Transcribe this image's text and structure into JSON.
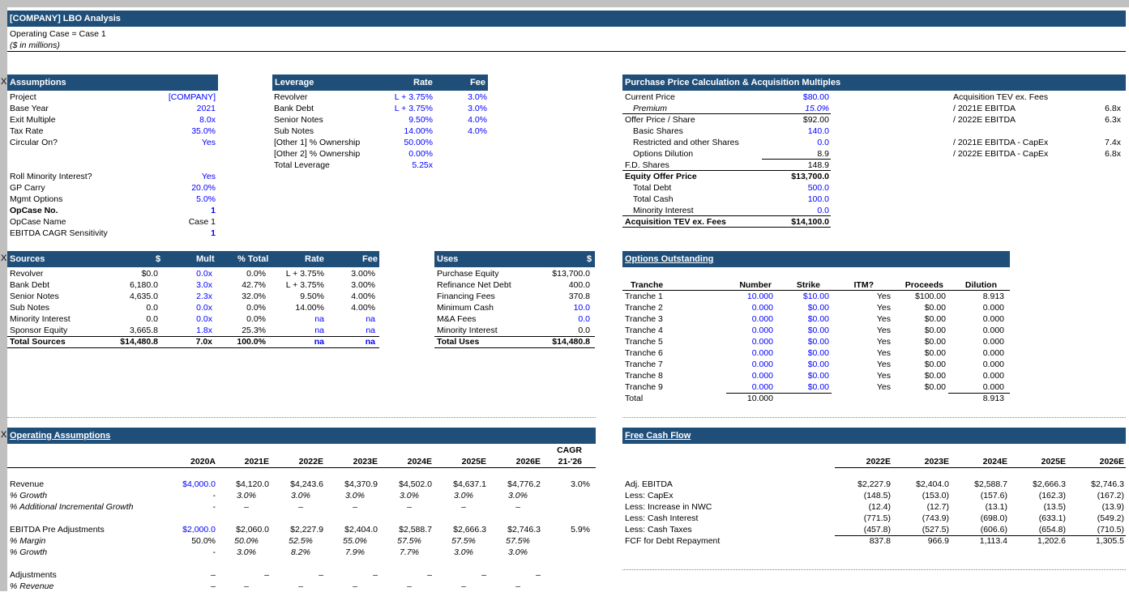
{
  "title": "[COMPANY] LBO Analysis",
  "subtitle1": "Operating Case = Case 1",
  "subtitle2": "($ in millions)",
  "x_mark": "X",
  "assumptions": {
    "header": "Assumptions",
    "rows": [
      {
        "label": "Project",
        "value": "[COMPANY]"
      },
      {
        "label": "Base Year",
        "value": "2021"
      },
      {
        "label": "Exit Multiple",
        "value": "8.0x"
      },
      {
        "label": "Tax Rate",
        "value": "35.0%"
      },
      {
        "label": "Circular On?",
        "value": "Yes"
      }
    ],
    "rows2": [
      {
        "label": "Roll Minority Interest?",
        "value": "Yes"
      },
      {
        "label": "GP Carry",
        "value": "20.0%"
      },
      {
        "label": "Mgmt Options",
        "value": "5.0%"
      },
      {
        "label": "OpCase No.",
        "value": "1"
      },
      {
        "label": "OpCase Name",
        "value": "Case 1"
      },
      {
        "label": "EBITDA CAGR Sensitivity",
        "value": "1"
      }
    ]
  },
  "leverage": {
    "header": "Leverage",
    "col_rate": "Rate",
    "col_fee": "Fee",
    "rows": [
      {
        "label": "Revolver",
        "rate": "L + 3.75%",
        "fee": "3.0%"
      },
      {
        "label": "Bank Debt",
        "rate": "L + 3.75%",
        "fee": "3.0%"
      },
      {
        "label": "Senior Notes",
        "rate": "9.50%",
        "fee": "4.0%"
      },
      {
        "label": "Sub Notes",
        "rate": "14.00%",
        "fee": "4.0%"
      },
      {
        "label": "[Other 1] % Ownership",
        "rate": "50.00%",
        "fee": ""
      },
      {
        "label": "[Other 2] % Ownership",
        "rate": "0.00%",
        "fee": ""
      },
      {
        "label": "Total Leverage",
        "rate": "5.25x",
        "fee": ""
      }
    ]
  },
  "purchase": {
    "header": "Purchase Price Calculation & Acquisition Multiples",
    "rows": [
      {
        "label": "Current Price",
        "value": "$80.00"
      },
      {
        "label": "Premium",
        "value": "15.0%"
      },
      {
        "label": "Offer Price / Share",
        "value": "$92.00"
      },
      {
        "label": "Basic Shares",
        "value": "140.0"
      },
      {
        "label": "Restricted and other Shares",
        "value": "0.0"
      },
      {
        "label": "Options Dilution",
        "value": "8.9"
      },
      {
        "label": "F.D. Shares",
        "value": "148.9"
      },
      {
        "label": "Equity Offer Price",
        "value": "$13,700.0"
      },
      {
        "label": "Total Debt",
        "value": "500.0"
      },
      {
        "label": "Total Cash",
        "value": "100.0"
      },
      {
        "label": "Minority Interest",
        "value": "0.0"
      },
      {
        "label": "Acquisition TEV ex. Fees",
        "value": "$14,100.0"
      }
    ],
    "multiples_title": "Acquisition TEV ex. Fees",
    "multiples": [
      {
        "label": "/ 2021E EBITDA",
        "value": "6.8x"
      },
      {
        "label": "/ 2022E EBITDA",
        "value": "6.3x"
      },
      {
        "label": "/ 2021E EBITDA - CapEx",
        "value": "7.4x"
      },
      {
        "label": "/ 2022E EBITDA - CapEx",
        "value": "6.8x"
      }
    ]
  },
  "sources": {
    "header": "Sources",
    "cols": [
      "$",
      "Mult",
      "% Total",
      "Rate",
      "Fee"
    ],
    "rows": [
      {
        "label": "Revolver",
        "d": "$0.0",
        "mult": "0.0x",
        "pct": "0.0%",
        "rate": "L + 3.75%",
        "fee": "3.00%"
      },
      {
        "label": "Bank Debt",
        "d": "6,180.0",
        "mult": "3.0x",
        "pct": "42.7%",
        "rate": "L + 3.75%",
        "fee": "3.00%"
      },
      {
        "label": "Senior Notes",
        "d": "4,635.0",
        "mult": "2.3x",
        "pct": "32.0%",
        "rate": "9.50%",
        "fee": "4.00%"
      },
      {
        "label": "Sub Notes",
        "d": "0.0",
        "mult": "0.0x",
        "pct": "0.0%",
        "rate": "14.00%",
        "fee": "4.00%"
      },
      {
        "label": "Minority Interest",
        "d": "0.0",
        "mult": "0.0x",
        "pct": "0.0%",
        "rate": "na",
        "fee": "na"
      },
      {
        "label": "Sponsor Equity",
        "d": "3,665.8",
        "mult": "1.8x",
        "pct": "25.3%",
        "rate": "na",
        "fee": "na"
      },
      {
        "label": "Total Sources",
        "d": "$14,480.8",
        "mult": "7.0x",
        "pct": "100.0%",
        "rate": "na",
        "fee": "na"
      }
    ]
  },
  "uses": {
    "header": "Uses",
    "col": "$",
    "rows": [
      {
        "label": "Purchase Equity",
        "value": "$13,700.0"
      },
      {
        "label": "Refinance Net Debt",
        "value": "400.0"
      },
      {
        "label": "Financing Fees",
        "value": "370.8"
      },
      {
        "label": "Minimum Cash",
        "value": "10.0"
      },
      {
        "label": "M&A Fees",
        "value": "0.0"
      },
      {
        "label": "Minority Interest",
        "value": "0.0"
      },
      {
        "label": "Total Uses",
        "value": "$14,480.8"
      }
    ]
  },
  "options": {
    "header": "Options Outstanding",
    "cols": [
      "Tranche",
      "Number",
      "Strike",
      "ITM?",
      "Proceeds",
      "Dilution"
    ],
    "rows": [
      {
        "t": "Tranche 1",
        "n": "10.000",
        "s": "$10.00",
        "itm": "Yes",
        "p": "$100.00",
        "d": "8.913"
      },
      {
        "t": "Tranche 2",
        "n": "0.000",
        "s": "$0.00",
        "itm": "Yes",
        "p": "$0.00",
        "d": "0.000"
      },
      {
        "t": "Tranche 3",
        "n": "0.000",
        "s": "$0.00",
        "itm": "Yes",
        "p": "$0.00",
        "d": "0.000"
      },
      {
        "t": "Tranche 4",
        "n": "0.000",
        "s": "$0.00",
        "itm": "Yes",
        "p": "$0.00",
        "d": "0.000"
      },
      {
        "t": "Tranche 5",
        "n": "0.000",
        "s": "$0.00",
        "itm": "Yes",
        "p": "$0.00",
        "d": "0.000"
      },
      {
        "t": "Tranche 6",
        "n": "0.000",
        "s": "$0.00",
        "itm": "Yes",
        "p": "$0.00",
        "d": "0.000"
      },
      {
        "t": "Tranche 7",
        "n": "0.000",
        "s": "$0.00",
        "itm": "Yes",
        "p": "$0.00",
        "d": "0.000"
      },
      {
        "t": "Tranche 8",
        "n": "0.000",
        "s": "$0.00",
        "itm": "Yes",
        "p": "$0.00",
        "d": "0.000"
      },
      {
        "t": "Tranche 9",
        "n": "0.000",
        "s": "$0.00",
        "itm": "Yes",
        "p": "$0.00",
        "d": "0.000"
      }
    ],
    "total_label": "Total",
    "total_number": "10.000",
    "total_dilution": "8.913"
  },
  "operating": {
    "header": "Operating Assumptions",
    "years": [
      "2020A",
      "2021E",
      "2022E",
      "2023E",
      "2024E",
      "2025E",
      "2026E"
    ],
    "cagr_top": "CAGR",
    "cagr_bottom": "21-'26",
    "rows": [
      {
        "label": "Revenue",
        "vals": [
          "$4,000.0",
          "$4,120.0",
          "$4,243.6",
          "$4,370.9",
          "$4,502.0",
          "$4,637.1",
          "$4,776.2"
        ],
        "cagr": "3.0%"
      },
      {
        "label": "% Growth",
        "vals": [
          "-",
          "3.0%",
          "3.0%",
          "3.0%",
          "3.0%",
          "3.0%",
          "3.0%"
        ],
        "cagr": ""
      },
      {
        "label": "% Additional Incremental Growth",
        "vals": [
          "-",
          "–",
          "–",
          "–",
          "–",
          "–",
          "–"
        ],
        "cagr": ""
      },
      {
        "label": "EBITDA Pre Adjustments",
        "vals": [
          "$2,000.0",
          "$2,060.0",
          "$2,227.9",
          "$2,404.0",
          "$2,588.7",
          "$2,666.3",
          "$2,746.3"
        ],
        "cagr": "5.9%"
      },
      {
        "label": "% Margin",
        "vals": [
          "50.0%",
          "50.0%",
          "52.5%",
          "55.0%",
          "57.5%",
          "57.5%",
          "57.5%"
        ],
        "cagr": ""
      },
      {
        "label": "% Growth",
        "vals": [
          "-",
          "3.0%",
          "8.2%",
          "7.9%",
          "7.7%",
          "3.0%",
          "3.0%"
        ],
        "cagr": ""
      },
      {
        "label": "Adjustments",
        "vals": [
          "–",
          "–",
          "–",
          "–",
          "–",
          "–",
          "–"
        ],
        "cagr": ""
      },
      {
        "label": "% Revenue",
        "vals": [
          "–",
          "–",
          "–",
          "–",
          "–",
          "–",
          "–"
        ],
        "cagr": ""
      }
    ]
  },
  "fcf": {
    "header": "Free Cash Flow",
    "years": [
      "2022E",
      "2023E",
      "2024E",
      "2025E",
      "2026E"
    ],
    "rows": [
      {
        "label": "Adj. EBITDA",
        "vals": [
          "$2,227.9",
          "$2,404.0",
          "$2,588.7",
          "$2,666.3",
          "$2,746.3"
        ]
      },
      {
        "label": "Less: CapEx",
        "vals": [
          "(148.5)",
          "(153.0)",
          "(157.6)",
          "(162.3)",
          "(167.2)"
        ]
      },
      {
        "label": "Less: Increase in NWC",
        "vals": [
          "(12.4)",
          "(12.7)",
          "(13.1)",
          "(13.5)",
          "(13.9)"
        ]
      },
      {
        "label": "Less: Cash Interest",
        "vals": [
          "(771.5)",
          "(743.9)",
          "(698.0)",
          "(633.1)",
          "(549.2)"
        ]
      },
      {
        "label": "Less: Cash Taxes",
        "vals": [
          "(457.8)",
          "(527.5)",
          "(606.6)",
          "(654.8)",
          "(710.5)"
        ]
      },
      {
        "label": "FCF for Debt Repayment",
        "vals": [
          "837.8",
          "966.9",
          "1,113.4",
          "1,202.6",
          "1,305.5"
        ]
      }
    ]
  }
}
